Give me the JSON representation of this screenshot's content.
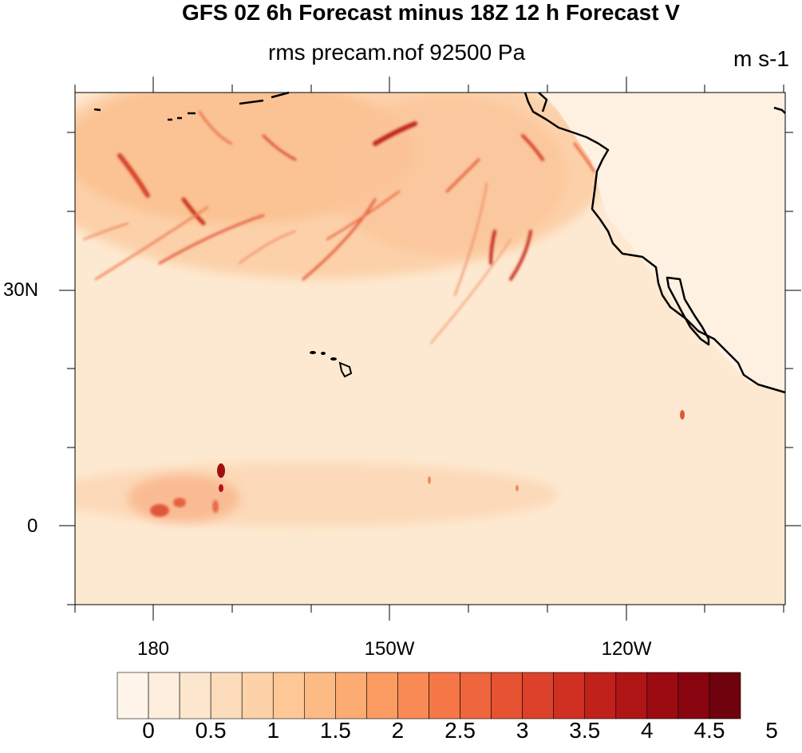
{
  "title": "GFS 0Z 6h Forecast minus 18Z 12 h Forecast V",
  "subtitle": "rms precam.nof 92500 Pa",
  "units": "m s-1",
  "lat_labels": [
    "30N",
    "0"
  ],
  "lon_labels": [
    "180",
    "150W",
    "120W"
  ],
  "colorbar": {
    "labels": [
      "0",
      "0.5",
      "1",
      "1.5",
      "2",
      "2.5",
      "3",
      "3.5",
      "4",
      "4.5",
      "5"
    ],
    "colors": [
      "#fff5eb",
      "#fdeedd",
      "#fde6ce",
      "#fddcbc",
      "#fdd2a8",
      "#fdc796",
      "#fcba84",
      "#fcab72",
      "#fb9b62",
      "#f98a55",
      "#f57748",
      "#ef653d",
      "#e65333",
      "#dc412a",
      "#cf3022",
      "#c0221b",
      "#b01516",
      "#9d0b12",
      "#880510",
      "#6f020c"
    ]
  },
  "legend_title": "",
  "map": {
    "background_color": "#fde9d1",
    "coastline_color": "#000000"
  }
}
